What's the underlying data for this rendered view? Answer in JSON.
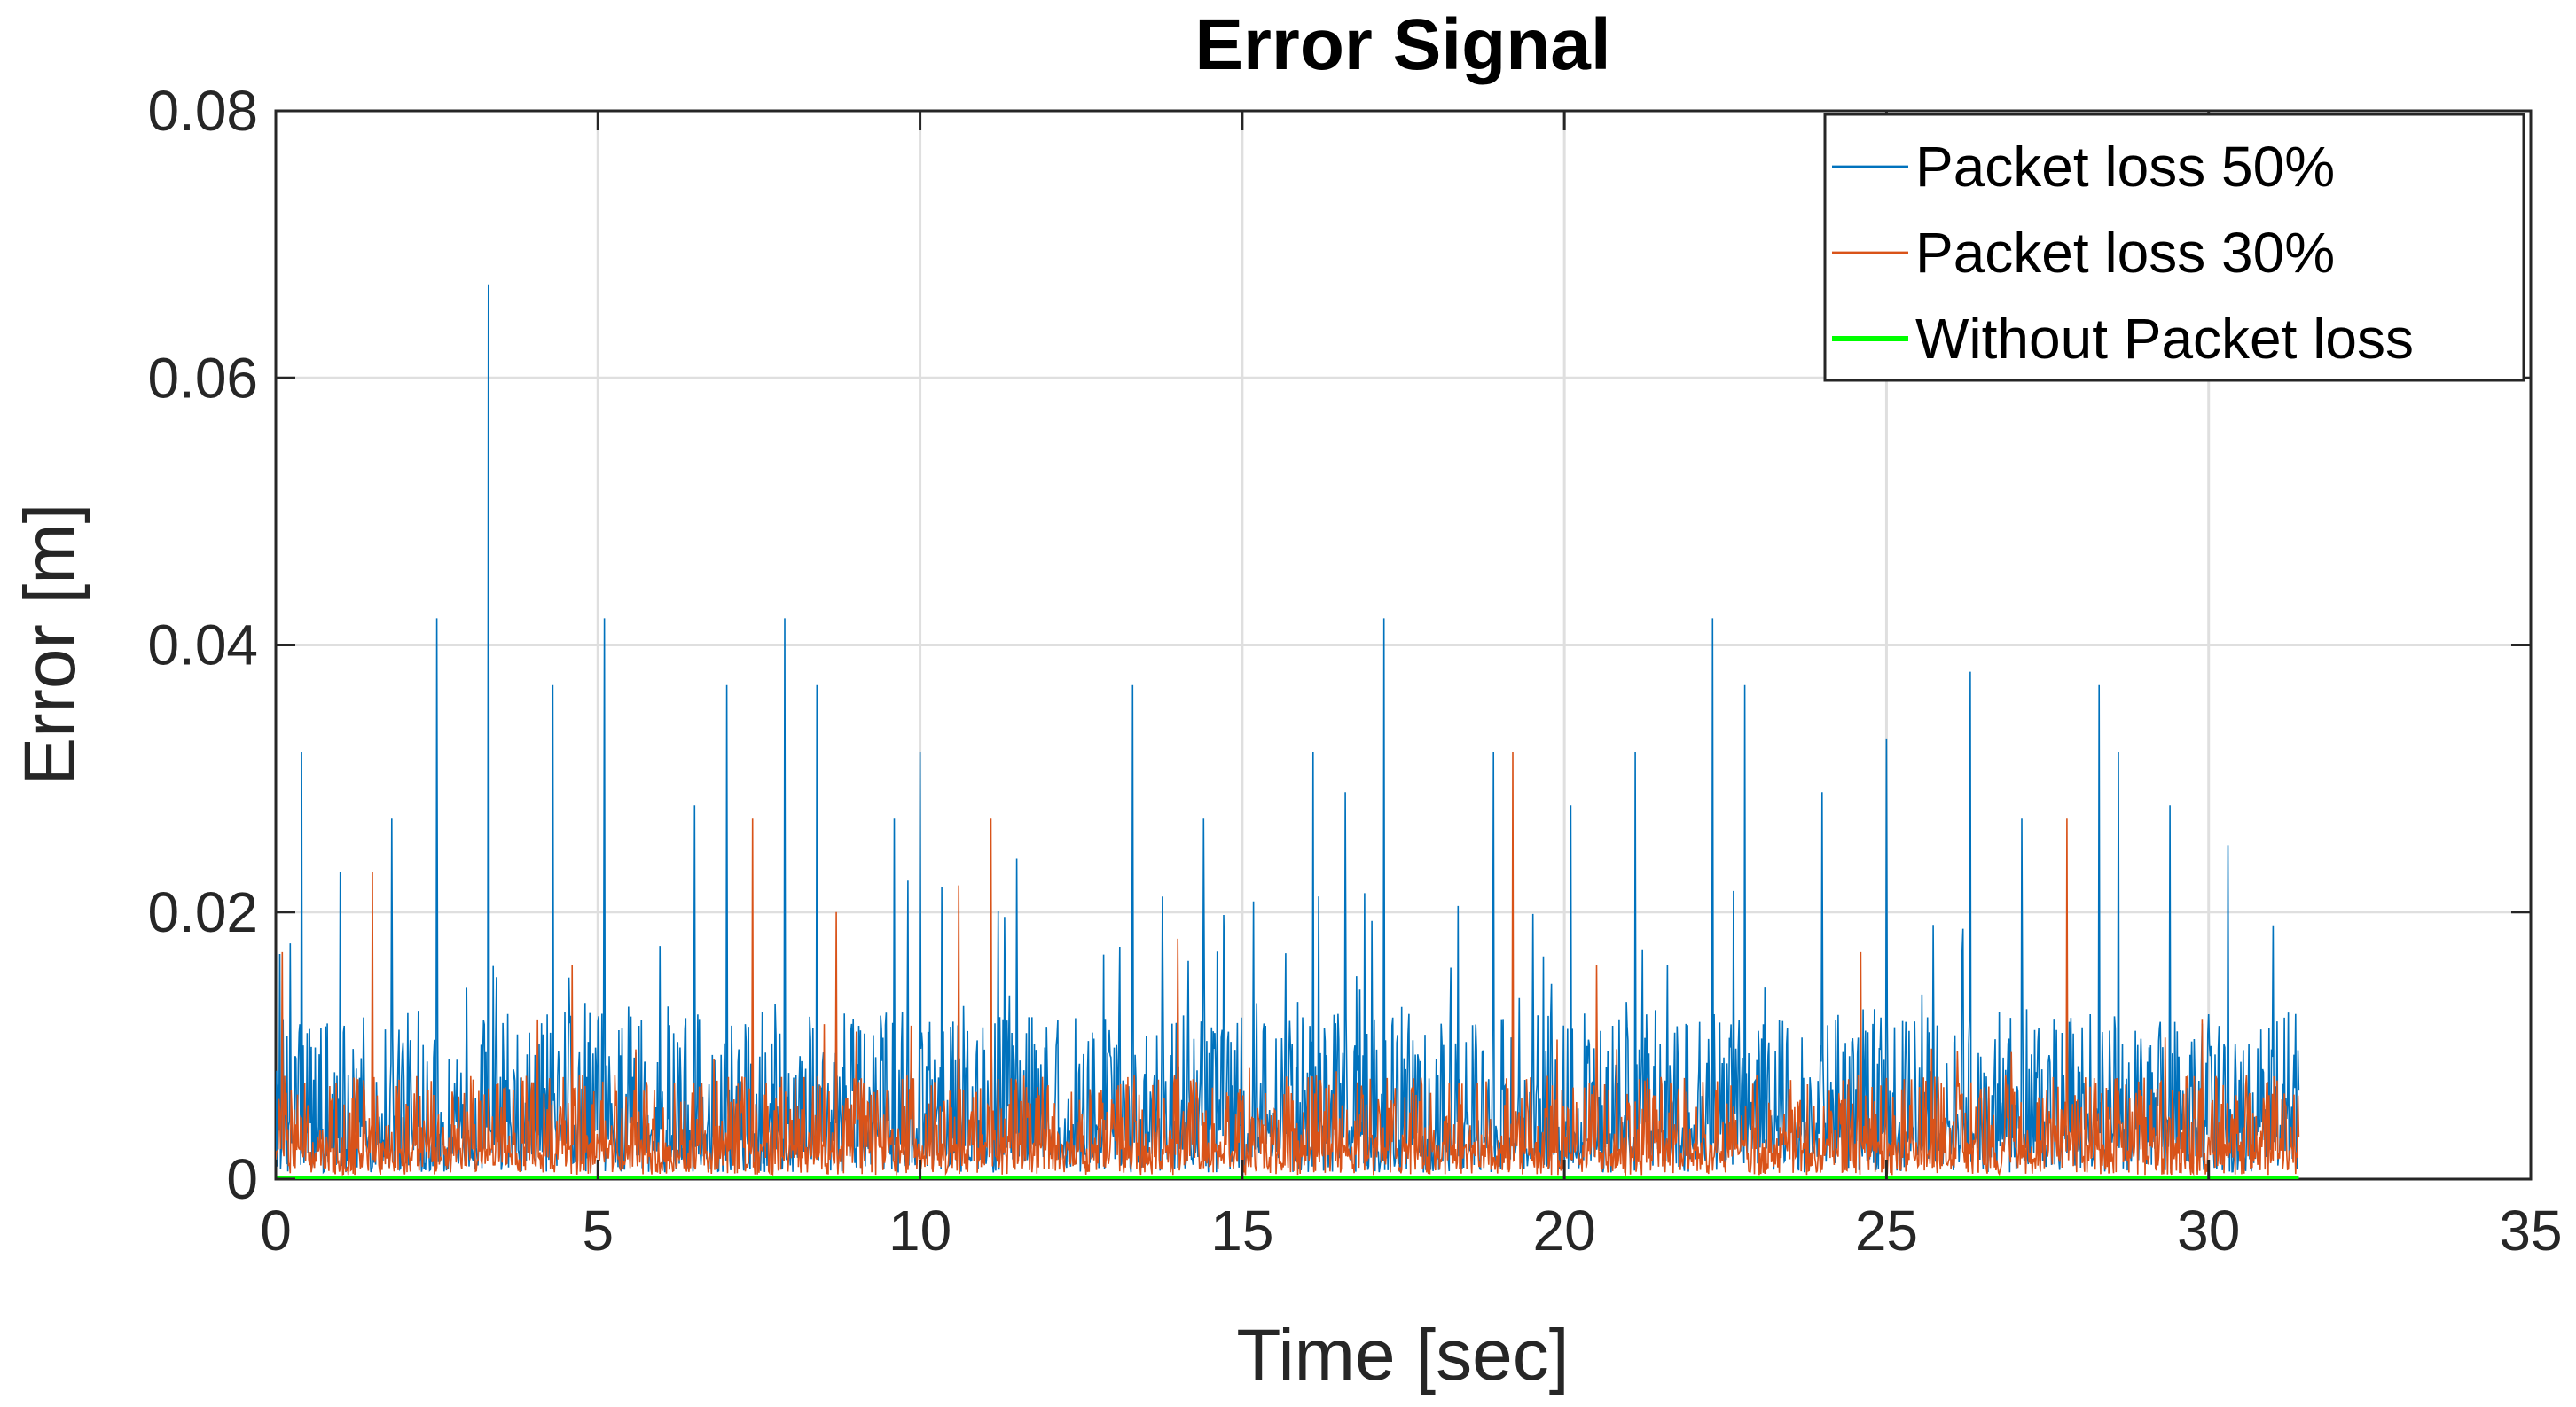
{
  "chart_data": {
    "type": "line",
    "title": "Error Signal",
    "xlabel": "Time [sec]",
    "ylabel": "Error [m]",
    "xlim": [
      0,
      35
    ],
    "ylim": [
      0,
      0.08
    ],
    "xticks": [
      0,
      5,
      10,
      15,
      20,
      25,
      30,
      35
    ],
    "xtick_labels": [
      "0",
      "5",
      "10",
      "15",
      "20",
      "25",
      "30",
      "35"
    ],
    "yticks": [
      0,
      0.02,
      0.04,
      0.06,
      0.08
    ],
    "ytick_labels": [
      "0",
      "0.02",
      "0.04",
      "0.06",
      "0.08"
    ],
    "grid": true,
    "legend_position": "top-right",
    "series": [
      {
        "name": "Packet loss 50%",
        "color": "#0072BD",
        "x_range": [
          0,
          31.4
        ],
        "baseline": 0.0005,
        "peaks": [
          [
            0.4,
            0.032
          ],
          [
            1.0,
            0.023
          ],
          [
            1.8,
            0.027
          ],
          [
            2.5,
            0.042
          ],
          [
            3.3,
            0.067
          ],
          [
            4.3,
            0.037
          ],
          [
            5.1,
            0.042
          ],
          [
            6.5,
            0.028
          ],
          [
            7.0,
            0.037
          ],
          [
            7.9,
            0.042
          ],
          [
            8.4,
            0.037
          ],
          [
            9.6,
            0.027
          ],
          [
            10.0,
            0.032
          ],
          [
            11.5,
            0.024
          ],
          [
            13.3,
            0.037
          ],
          [
            14.4,
            0.027
          ],
          [
            16.1,
            0.032
          ],
          [
            16.6,
            0.029
          ],
          [
            17.2,
            0.042
          ],
          [
            18.9,
            0.032
          ],
          [
            20.1,
            0.028
          ],
          [
            21.1,
            0.032
          ],
          [
            22.3,
            0.042
          ],
          [
            22.8,
            0.037
          ],
          [
            24.0,
            0.029
          ],
          [
            25.0,
            0.033
          ],
          [
            26.3,
            0.038
          ],
          [
            27.1,
            0.027
          ],
          [
            28.3,
            0.037
          ],
          [
            28.6,
            0.032
          ],
          [
            29.4,
            0.028
          ],
          [
            30.3,
            0.025
          ],
          [
            31.0,
            0.019
          ]
        ]
      },
      {
        "name": "Packet loss 30%",
        "color": "#D95319",
        "x_range": [
          0,
          31.4
        ],
        "baseline": 0.0003,
        "peaks": [
          [
            0.1,
            0.017
          ],
          [
            1.5,
            0.023
          ],
          [
            4.6,
            0.016
          ],
          [
            7.4,
            0.027
          ],
          [
            8.7,
            0.02
          ],
          [
            10.6,
            0.022
          ],
          [
            11.1,
            0.027
          ],
          [
            14.0,
            0.018
          ],
          [
            19.2,
            0.032
          ],
          [
            20.5,
            0.016
          ],
          [
            24.6,
            0.017
          ],
          [
            27.8,
            0.027
          ],
          [
            29.9,
            0.012
          ]
        ]
      },
      {
        "name": "Without Packet loss",
        "color": "#00FF00",
        "x": [
          0,
          31.4
        ],
        "y": [
          5e-05,
          5e-05
        ]
      }
    ]
  }
}
